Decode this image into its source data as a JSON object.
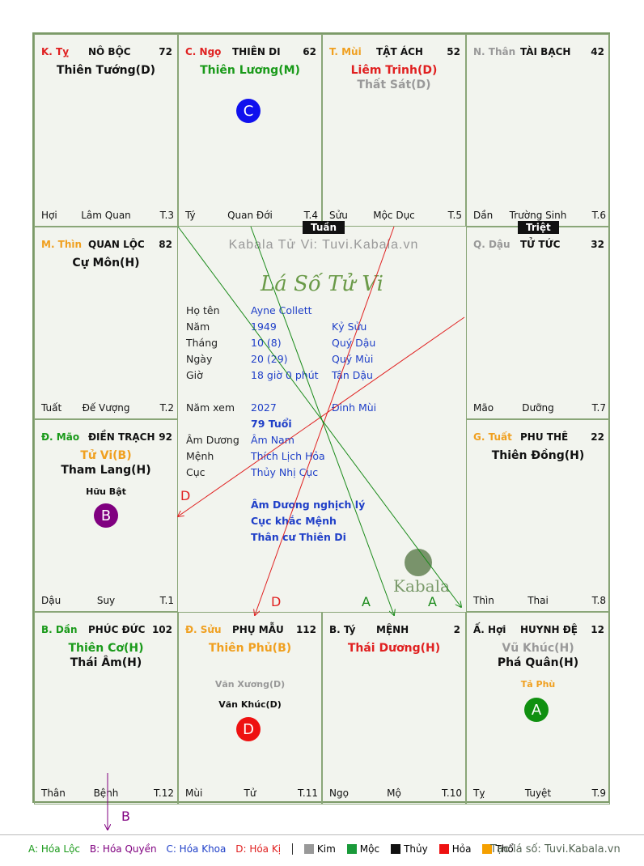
{
  "watermark": "Kabala Tử Vi: Tuvi.Kabala.vn",
  "center_title": "Lá Số Tử Vi",
  "logo_text": "Kabala",
  "tags": {
    "tuan": "Tuần",
    "triet": "Triệt"
  },
  "cells": [
    {
      "id": "ty",
      "can": "K. Tỵ",
      "can_color": "#e02020",
      "palace": "NÔ BỘC",
      "num": "72",
      "main": [
        {
          "t": "Thiên Tướng(D)",
          "c": "#111"
        }
      ],
      "minor": [],
      "left": "Hợi",
      "mid": "Lâm Quan",
      "right": "T.3"
    },
    {
      "id": "ngo",
      "can": "C. Ngọ",
      "can_color": "#e02020",
      "palace": "THIÊN DI <THÂN>",
      "num": "62",
      "main": [
        {
          "t": "Thiên Lương(M)",
          "c": "#1a9a1a"
        }
      ],
      "minor": [],
      "left": "Tý",
      "mid": "Quan Đới",
      "right": "T.4"
    },
    {
      "id": "mui",
      "can": "T. Mùi",
      "can_color": "#f0a020",
      "palace": "TẬT ÁCH",
      "num": "52",
      "main": [
        {
          "t": "Liêm Trinh(D)",
          "c": "#e02020"
        },
        {
          "t": "Thất Sát(D)",
          "c": "#999999"
        }
      ],
      "minor": [],
      "left": "Sửu",
      "mid": "Mộc Dục",
      "right": "T.5"
    },
    {
      "id": "than",
      "can": "N. Thân",
      "can_color": "#999999",
      "palace": "TÀI BẠCH",
      "num": "42",
      "main": [],
      "minor": [],
      "left": "Dần",
      "mid": "Trường Sinh",
      "right": "T.6"
    },
    {
      "id": "thin",
      "can": "M. Thìn",
      "can_color": "#f0a020",
      "palace": "QUAN LỘC",
      "num": "82",
      "main": [
        {
          "t": "Cự Môn(H)",
          "c": "#111"
        }
      ],
      "minor": [],
      "left": "Tuất",
      "mid": "Đế Vượng",
      "right": "T.2"
    },
    {
      "id": "dau",
      "can": "Q. Dậu",
      "can_color": "#999999",
      "palace": "TỬ TỨC",
      "num": "32",
      "main": [],
      "minor": [],
      "left": "Mão",
      "mid": "Dưỡng",
      "right": "T.7"
    },
    {
      "id": "mao",
      "can": "Đ. Mão",
      "can_color": "#1a9a1a",
      "palace": "ĐIỀN TRẠCH",
      "num": "92",
      "main": [
        {
          "t": "Tử Vi(B)",
          "c": "#f0a020"
        },
        {
          "t": "Tham Lang(H)",
          "c": "#111"
        }
      ],
      "minor": [
        {
          "t": "Hữu Bật",
          "c": "#111"
        }
      ],
      "left": "Dậu",
      "mid": "Suy",
      "right": "T.1"
    },
    {
      "id": "tuat",
      "can": "G. Tuất",
      "can_color": "#f0a020",
      "palace": "PHU THÊ",
      "num": "22",
      "main": [
        {
          "t": "Thiên Đồng(H)",
          "c": "#111"
        }
      ],
      "minor": [],
      "left": "Thìn",
      "mid": "Thai",
      "right": "T.8"
    },
    {
      "id": "dan",
      "can": "B. Dần",
      "can_color": "#1a9a1a",
      "palace": "PHÚC ĐỨC",
      "num": "102",
      "main": [
        {
          "t": "Thiên Cơ(H)",
          "c": "#1a9a1a"
        },
        {
          "t": "Thái Âm(H)",
          "c": "#111"
        }
      ],
      "minor": [],
      "left": "Thân",
      "mid": "Bệnh",
      "right": "T.12"
    },
    {
      "id": "suu",
      "can": "Đ. Sửu",
      "can_color": "#f0a020",
      "palace": "PHỤ MẪU",
      "num": "112",
      "main": [
        {
          "t": "Thiên Phủ(B)",
          "c": "#f0a020"
        }
      ],
      "minor": [
        {
          "t": "Văn Xương(D)",
          "c": "#999999"
        },
        {
          "t": "Văn Khúc(D)",
          "c": "#111"
        }
      ],
      "left": "Mùi",
      "mid": "Tử",
      "right": "T.11"
    },
    {
      "id": "tyy",
      "can": "B. Tý",
      "can_color": "#111111",
      "palace": "MỆNH",
      "num": "2",
      "main": [
        {
          "t": "Thái Dương(H)",
          "c": "#e02020"
        }
      ],
      "minor": [],
      "left": "Ngọ",
      "mid": "Mộ",
      "right": "T.10"
    },
    {
      "id": "hoi",
      "can": "Ấ. Hợi",
      "can_color": "#111111",
      "palace": "HUYNH ĐỆ",
      "num": "12",
      "main": [
        {
          "t": "Vũ Khúc(H)",
          "c": "#999999"
        },
        {
          "t": "Phá Quân(H)",
          "c": "#111"
        }
      ],
      "minor": [
        {
          "t": "Tả Phù",
          "c": "#f0a020"
        }
      ],
      "left": "Tỵ",
      "mid": "Tuyệt",
      "right": "T.9"
    }
  ],
  "circles": {
    "c": "C",
    "b": "B",
    "d": "D",
    "a": "A"
  },
  "arrow_labels": {
    "d1": "D",
    "d2": "D",
    "a1": "A",
    "a2": "A",
    "b": "B"
  },
  "info": {
    "ho_ten": {
      "label": "Họ tên",
      "value": "Ayne Collett"
    },
    "nam": {
      "label": "Năm",
      "value": "1949",
      "extra": "Kỷ Sửu"
    },
    "thang": {
      "label": "Tháng",
      "value": "10  (8)",
      "extra": "Quý Dậu"
    },
    "ngay": {
      "label": "Ngày",
      "value": "20  (29)",
      "extra": "Quý Mùi"
    },
    "gio": {
      "label": "Giờ",
      "value": "18 giờ 0 phút",
      "extra": "Tân Dậu"
    },
    "nam_xem": {
      "label": "Năm xem",
      "value": "2027",
      "extra": "Đinh Mùi"
    },
    "tuoi": "79 Tuổi",
    "am_duong": {
      "label": "Âm Dương",
      "value": "Âm Nam"
    },
    "menh": {
      "label": "Mệnh",
      "value": "Thích Lịch Hỏa"
    },
    "cuc": {
      "label": "Cục",
      "value": "Thủy Nhị Cục"
    },
    "notes": [
      "Âm Dương nghịch lý",
      "Cục khắc Mệnh",
      "Thân cư Thiên Di"
    ]
  },
  "legend": {
    "a": "A: Hóa Lộc",
    "b": "B: Hóa Quyền",
    "c": "C: Hóa Khoa",
    "d": "D: Hóa Kị",
    "elements": [
      {
        "name": "Kim",
        "color": "#999999"
      },
      {
        "name": "Mộc",
        "color": "#1a9a3a"
      },
      {
        "name": "Thủy",
        "color": "#111111"
      },
      {
        "name": "Hỏa",
        "color": "#ee1111"
      },
      {
        "name": "Thổ",
        "color": "#f5a000"
      }
    ],
    "site": "Tạo lá số: Tuvi.Kabala.vn"
  }
}
